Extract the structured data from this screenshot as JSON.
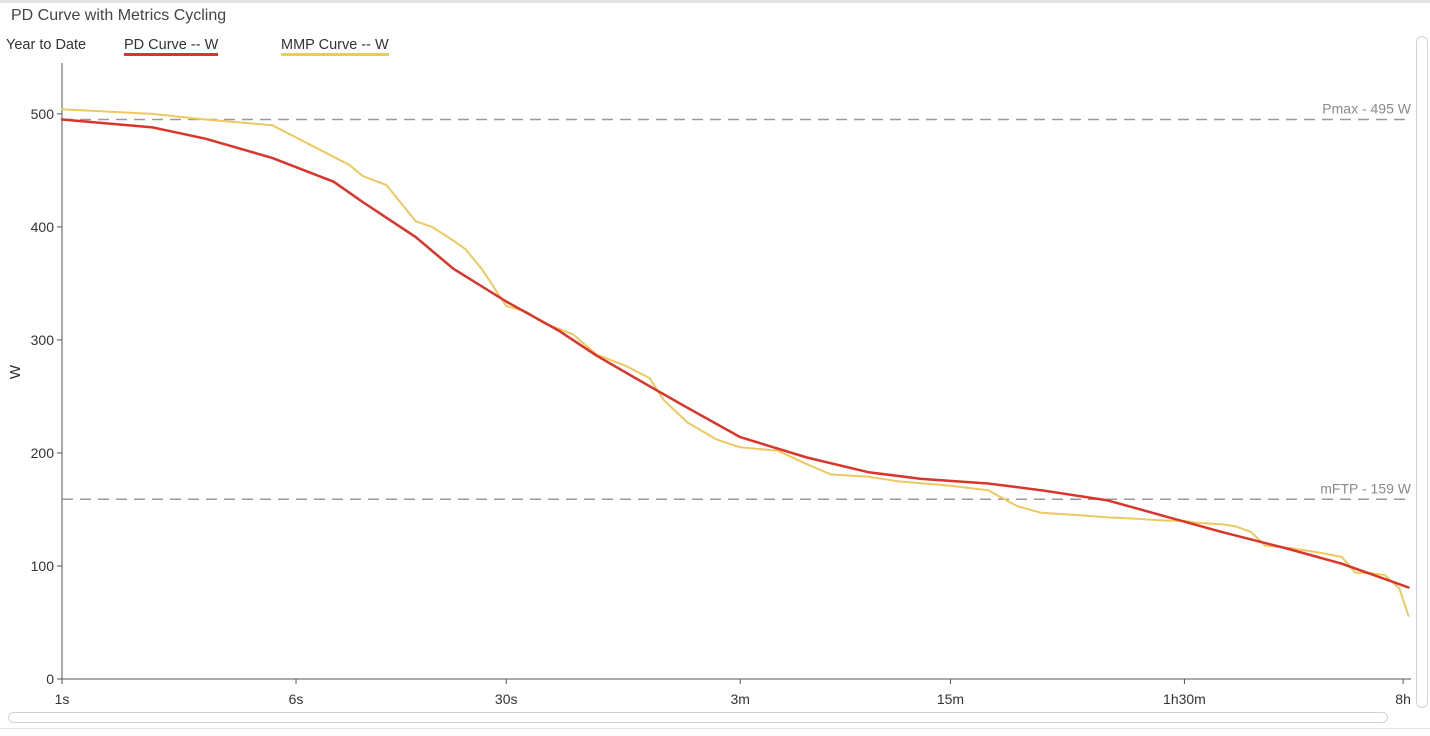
{
  "window": {
    "title": "PD Curve with Metrics Cycling"
  },
  "legend": {
    "period": "Year to Date",
    "entries": [
      {
        "label": "PD Curve  -- W",
        "color": "#d9352b"
      },
      {
        "label": "MMP Curve  -- W",
        "color": "#eec95f"
      }
    ]
  },
  "colors": {
    "pd_curve": "#d9352b",
    "mmp_curve": "#eec95f",
    "reference_line": "#9a9a9a",
    "axis": "#555555"
  },
  "chart_data": {
    "type": "line",
    "xlabel": "",
    "ylabel": "W",
    "x_scale": "log",
    "x_unit": "seconds",
    "xlim": [
      1,
      30600
    ],
    "ylim": [
      0,
      545
    ],
    "grid": false,
    "legend_position": "top-left",
    "x_ticks": [
      {
        "value": 1,
        "label": "1s"
      },
      {
        "value": 6,
        "label": "6s"
      },
      {
        "value": 30,
        "label": "30s"
      },
      {
        "value": 180,
        "label": "3m"
      },
      {
        "value": 900,
        "label": "15m"
      },
      {
        "value": 5400,
        "label": "1h30m"
      },
      {
        "value": 28800,
        "label": "8h"
      }
    ],
    "y_ticks": [
      0,
      100,
      200,
      300,
      400,
      500
    ],
    "reference_lines": [
      {
        "label": "Pmax - 495 W",
        "value": 495
      },
      {
        "label": "mFTP - 159 W",
        "value": 159
      }
    ],
    "series": [
      {
        "name": "PD Curve  -- W",
        "x": [
          1,
          2,
          3,
          5,
          8,
          10,
          15,
          20,
          30,
          45,
          60,
          90,
          120,
          180,
          300,
          480,
          720,
          1200,
          1800,
          3000,
          4800,
          7200,
          12000,
          18000,
          30000
        ],
        "y": [
          495,
          488,
          478,
          461,
          440,
          422,
          391,
          363,
          334,
          308,
          286,
          259,
          240,
          214,
          196,
          183,
          177,
          173,
          167,
          158,
          143,
          130,
          115,
          102,
          81
        ]
      },
      {
        "name": "MMP Curve  -- W",
        "x": [
          1,
          2,
          3,
          5,
          7,
          9,
          10,
          12,
          15,
          17,
          20,
          22,
          25,
          30,
          35,
          40,
          50,
          60,
          75,
          90,
          100,
          120,
          150,
          180,
          240,
          300,
          360,
          480,
          600,
          900,
          1200,
          1500,
          1800,
          2400,
          3000,
          3600,
          4800,
          5400,
          6000,
          7200,
          8000,
          9000,
          10000,
          12000,
          15000,
          18000,
          20000,
          22000,
          25000,
          28000,
          30000
        ],
        "y": [
          504,
          500,
          495,
          490,
          470,
          455,
          445,
          437,
          405,
          400,
          388,
          380,
          362,
          330,
          325,
          315,
          305,
          287,
          277,
          266,
          247,
          227,
          212,
          205,
          202,
          190,
          181,
          179,
          175,
          171,
          167,
          153,
          147,
          145,
          143,
          142,
          140,
          140,
          138,
          137,
          135,
          130,
          118,
          116,
          112,
          108,
          94,
          94,
          92,
          80,
          56
        ]
      }
    ]
  }
}
